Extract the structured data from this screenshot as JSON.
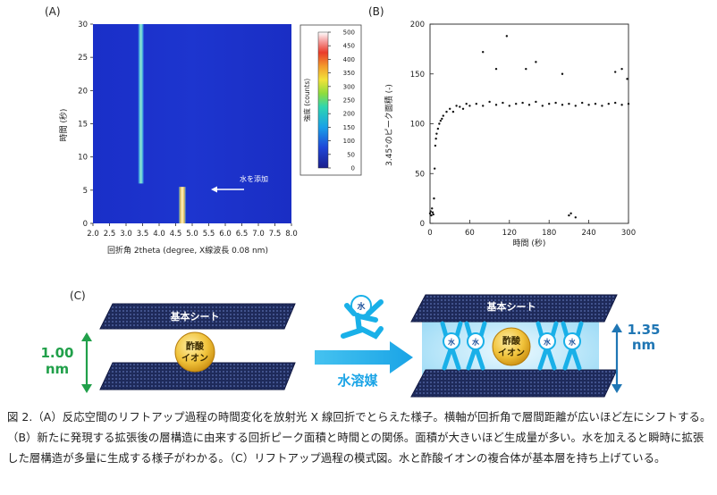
{
  "panels": {
    "a_label": "(A)",
    "b_label": "(B)",
    "c_label": "(C)"
  },
  "heatmap": {
    "type": "heatmap",
    "xlabel": "回折角 2theta (degree, X線波長 0.08 nm)",
    "ylabel": "時間 (秒)",
    "xlim": [
      2.0,
      8.0
    ],
    "ylim": [
      0,
      30
    ],
    "xticks": [
      "2.0",
      "2.5",
      "3.0",
      "3.5",
      "4.0",
      "4.5",
      "5.0",
      "5.5",
      "6.0",
      "6.5",
      "7.0",
      "7.5",
      "8.0"
    ],
    "yticks": [
      "0",
      "5",
      "10",
      "15",
      "20",
      "25",
      "30"
    ],
    "streaks": [
      {
        "x": 3.45,
        "t_start": 6,
        "t_end": 30
      },
      {
        "x": 4.7,
        "t_start": 0,
        "t_end": 5.5
      }
    ],
    "annotation": "水を添加",
    "colorbar": {
      "label": "強度 (counts)",
      "range": [
        0,
        500
      ],
      "ticks": [
        "0",
        "50",
        "100",
        "150",
        "200",
        "250",
        "300",
        "350",
        "400",
        "450",
        "500"
      ]
    }
  },
  "chart_data": {
    "type": "scatter",
    "xlabel": "時間 (秒)",
    "ylabel": "3.45°のピーク面積 (-)",
    "xlim": [
      0,
      300
    ],
    "ylim": [
      0,
      200
    ],
    "xticks": [
      "0",
      "60",
      "120",
      "180",
      "240",
      "300"
    ],
    "yticks": [
      "0",
      "50",
      "100",
      "150",
      "200"
    ],
    "grid": false,
    "series": [
      {
        "x": [
          0,
          1,
          2,
          3,
          4,
          5,
          6,
          7,
          8,
          9,
          10,
          12,
          14,
          16,
          18,
          20,
          25,
          30,
          35,
          40,
          45,
          50,
          55,
          60,
          70,
          80,
          90,
          100,
          110,
          120,
          130,
          140,
          150,
          160,
          170,
          180,
          190,
          200,
          210,
          220,
          230,
          240,
          250,
          260,
          270,
          280,
          290,
          300,
          80,
          100,
          116,
          145,
          160,
          200,
          210,
          213,
          220,
          280,
          290,
          298
        ],
        "y": [
          10,
          12,
          8,
          15,
          11,
          9,
          25,
          55,
          78,
          85,
          90,
          95,
          100,
          103,
          105,
          108,
          112,
          115,
          112,
          118,
          117,
          115,
          120,
          118,
          120,
          118,
          122,
          119,
          121,
          118,
          120,
          121,
          119,
          122,
          118,
          120,
          121,
          119,
          120,
          118,
          121,
          119,
          120,
          118,
          120,
          121,
          119,
          120,
          172,
          155,
          188,
          155,
          162,
          150,
          8,
          10,
          6,
          152,
          155,
          145
        ]
      }
    ]
  },
  "diagram": {
    "sheet_label": "基本シート",
    "ion_label": "酢酸\nイオン",
    "water_label": "水",
    "left_gap": "1.00\nnm",
    "right_gap": "1.35\nnm",
    "arrow_label": "水溶媒",
    "colors": {
      "green": "#21a04a",
      "blue": "#1f76b4",
      "cyan": "#19b0e8",
      "gold": "#e3a71c",
      "sheet": "#1e2a5a"
    }
  },
  "caption": "図 2.（A）反応空間のリフトアップ過程の時間変化を放射光 X 線回折でとらえた様子。横軸が回折角で層間距離が広いほど左にシフトする。（B）新たに発現する拡張後の層構造に由来する回折ピーク面積と時間との関係。面積が大きいほど生成量が多い。水を加えると瞬時に拡張した層構造が多量に生成する様子がわかる。（C）リフトアップ過程の模式図。水と酢酸イオンの複合体が基本層を持ち上げている。"
}
